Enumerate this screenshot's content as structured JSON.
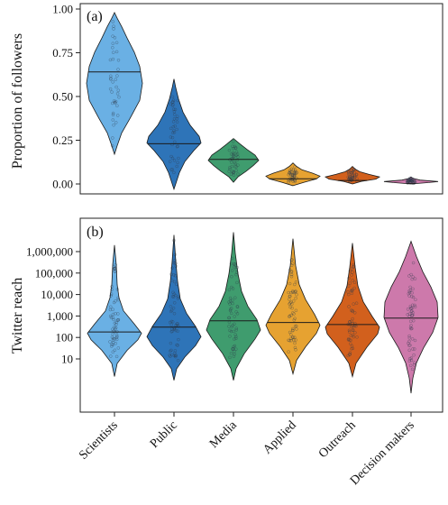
{
  "chart_data": [
    {
      "type": "violin",
      "panel_label": "(a)",
      "ylabel": "Proportion of followers",
      "ylim": [
        0,
        1
      ],
      "yticks": [
        0,
        0.25,
        0.5,
        0.75,
        1
      ],
      "ytick_labels": [
        "0.00",
        "0.25",
        "0.50",
        "0.75",
        "1.00"
      ],
      "categories": [
        "Scientists",
        "Public",
        "Media",
        "Applied",
        "Outreach",
        "Decision makers"
      ],
      "colors": [
        "#6ab0e4",
        "#2e74b8",
        "#3f9c6e",
        "#e6a231",
        "#d2601d",
        "#cd79ab"
      ],
      "medians": [
        0.64,
        0.23,
        0.14,
        0.03,
        0.02,
        0.002
      ],
      "ranges": [
        [
          0.17,
          0.98
        ],
        [
          -0.03,
          0.6
        ],
        [
          0.01,
          0.26
        ],
        [
          -0.01,
          0.12
        ],
        [
          0.0,
          0.1
        ],
        [
          0.0,
          0.04
        ]
      ],
      "grid": false
    },
    {
      "type": "violin",
      "panel_label": "(b)",
      "ylabel": "Twitter reach",
      "yscale": "log",
      "ylim": [
        0.15,
        10000000
      ],
      "yticks": [
        10,
        100,
        1000,
        10000,
        100000,
        1000000
      ],
      "ytick_labels": [
        "10",
        "100",
        "1,000",
        "10,000",
        "100,000",
        "1,000,000"
      ],
      "categories": [
        "Scientists",
        "Public",
        "Media",
        "Applied",
        "Outreach",
        "Decision makers"
      ],
      "colors": [
        "#6ab0e4",
        "#2e74b8",
        "#3f9c6e",
        "#e6a231",
        "#d2601d",
        "#cd79ab"
      ],
      "medians": [
        180,
        300,
        600,
        500,
        400,
        800
      ],
      "ranges": [
        [
          1.5,
          2000000
        ],
        [
          1,
          6000000
        ],
        [
          1,
          8000000
        ],
        [
          2,
          4000000
        ],
        [
          1.5,
          2500000
        ],
        [
          0.25,
          3000000
        ]
      ],
      "grid": false
    }
  ]
}
